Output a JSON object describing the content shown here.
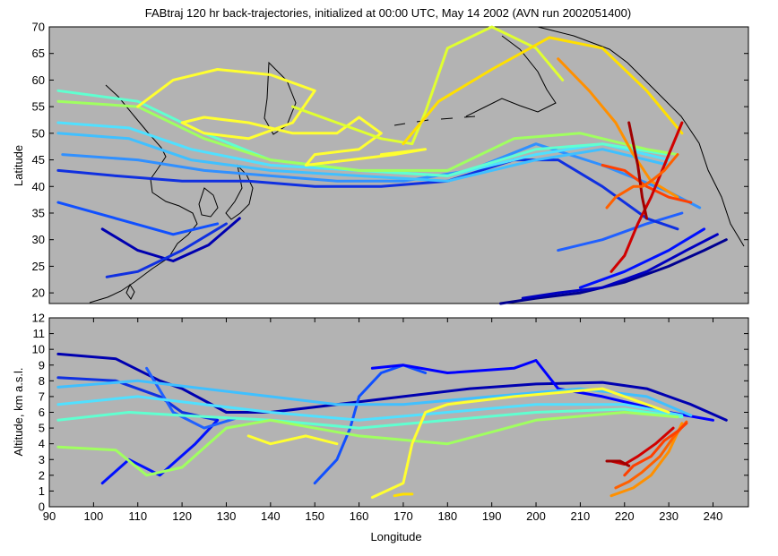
{
  "chart_data": [
    {
      "type": "line",
      "title": "FABtraj 120 hr back-trajectories, initialized at 00:00 UTC, May 14 2002 (AVN run 2002051400)",
      "xlabel": "",
      "ylabel": "Latitude",
      "xlim": [
        90,
        248
      ],
      "ylim": [
        18,
        70
      ],
      "yticks": [
        20,
        25,
        30,
        35,
        40,
        45,
        50,
        55,
        60,
        65,
        70
      ],
      "background": "#b3b3b3",
      "coastlines": true,
      "series": [
        {
          "color": "#000090",
          "x": [
            192,
            200,
            210,
            220,
            230,
            238,
            243
          ],
          "y": [
            18,
            19,
            20,
            22,
            25,
            28,
            30
          ]
        },
        {
          "color": "#0000c0",
          "x": [
            197,
            205,
            215,
            225,
            234,
            241
          ],
          "y": [
            19,
            20,
            21,
            24,
            28,
            31
          ]
        },
        {
          "color": "#0010ff",
          "x": [
            210,
            220,
            230,
            238
          ],
          "y": [
            21,
            24,
            28,
            32
          ]
        },
        {
          "color": "#2060ff",
          "x": [
            205,
            215,
            225,
            233
          ],
          "y": [
            28,
            30,
            33,
            35
          ]
        },
        {
          "color": "#1030e0",
          "x": [
            92,
            105,
            120,
            135,
            150,
            165,
            180,
            195,
            205,
            215,
            225,
            232
          ],
          "y": [
            43,
            42,
            41,
            41,
            40,
            40,
            41,
            45,
            45,
            40,
            34,
            32
          ]
        },
        {
          "color": "#3090ff",
          "x": [
            93,
            110,
            125,
            140,
            155,
            170,
            185,
            200,
            215,
            230,
            237
          ],
          "y": [
            46,
            45,
            43,
            42,
            41,
            41,
            43,
            48,
            44,
            39,
            36
          ]
        },
        {
          "color": "#1050ff",
          "x": [
            92,
            105,
            118,
            128
          ],
          "y": [
            37,
            34,
            31,
            33
          ]
        },
        {
          "color": "#0000b0",
          "x": [
            102,
            110,
            118,
            126,
            133
          ],
          "y": [
            32,
            28,
            26,
            29,
            34
          ]
        },
        {
          "color": "#1030e0",
          "x": [
            103,
            110,
            120,
            130
          ],
          "y": [
            23,
            24,
            28,
            33
          ]
        },
        {
          "color": "#50e0ff",
          "x": [
            92,
            108,
            122,
            140,
            160,
            180,
            200,
            215,
            230
          ],
          "y": [
            52,
            51,
            47,
            44,
            43,
            42,
            46,
            48,
            45
          ]
        },
        {
          "color": "#40c0ff",
          "x": [
            92,
            108,
            122,
            140,
            160,
            180,
            200,
            215,
            230
          ],
          "y": [
            50,
            49,
            45,
            43,
            42,
            41,
            45,
            47,
            44
          ]
        },
        {
          "color": "#60ffd0",
          "x": [
            92,
            110,
            125,
            140,
            160,
            180,
            200,
            215,
            230
          ],
          "y": [
            58,
            56,
            50,
            45,
            43,
            42,
            47,
            48,
            46
          ]
        },
        {
          "color": "#a0ff60",
          "x": [
            92,
            110,
            125,
            140,
            160,
            180,
            195,
            210,
            225,
            232
          ],
          "y": [
            56,
            55,
            49,
            45,
            43,
            43,
            49,
            50,
            47,
            46
          ]
        },
        {
          "color": "#ffff30",
          "x": [
            110,
            118,
            128,
            140,
            150,
            145,
            135,
            125,
            120,
            125,
            135,
            145,
            155,
            160,
            165,
            160,
            150,
            148,
            158,
            168,
            175,
            165
          ],
          "y": [
            55,
            60,
            62,
            61,
            58,
            52,
            49,
            50,
            52,
            53,
            52,
            50,
            50,
            53,
            50,
            47,
            46,
            44,
            45,
            46,
            47,
            46
          ]
        },
        {
          "color": "#e0ff30",
          "x": [
            145,
            155,
            165,
            172,
            175,
            180,
            190,
            200,
            206
          ],
          "y": [
            55,
            52,
            49,
            48,
            54,
            66,
            70,
            66,
            60
          ]
        },
        {
          "color": "#ffe000",
          "x": [
            170,
            178,
            190,
            203,
            215,
            225,
            233
          ],
          "y": [
            48,
            56,
            62,
            68,
            66,
            58,
            50
          ]
        },
        {
          "color": "#ff9000",
          "x": [
            205,
            212,
            218,
            222,
            226,
            232
          ],
          "y": [
            64,
            58,
            52,
            46,
            41,
            38
          ]
        },
        {
          "color": "#ff4000",
          "x": [
            215,
            220,
            225,
            230,
            235
          ],
          "y": [
            44,
            43,
            40,
            38,
            37
          ]
        },
        {
          "color": "#d00000",
          "x": [
            217,
            220,
            223,
            226,
            229,
            233
          ],
          "y": [
            24,
            27,
            33,
            38,
            44,
            52
          ]
        },
        {
          "color": "#a00000",
          "x": [
            221,
            222,
            223,
            224,
            225
          ],
          "y": [
            52,
            48,
            44,
            38,
            34
          ]
        },
        {
          "color": "#ff6000",
          "x": [
            216,
            218,
            222,
            224,
            226,
            229,
            232
          ],
          "y": [
            36,
            38,
            40,
            40,
            41,
            43,
            46
          ]
        }
      ]
    },
    {
      "type": "line",
      "title": "",
      "xlabel": "Longitude",
      "ylabel": "Altitude, km a.s.l.",
      "xlim": [
        90,
        248
      ],
      "ylim": [
        0,
        12
      ],
      "xticks": [
        90,
        100,
        110,
        120,
        130,
        140,
        150,
        160,
        170,
        180,
        190,
        200,
        210,
        220,
        230,
        240
      ],
      "yticks": [
        0,
        1,
        2,
        3,
        4,
        5,
        6,
        7,
        8,
        9,
        10,
        11,
        12
      ],
      "background": "#b3b3b3",
      "series": [
        {
          "color": "#0000b0",
          "x": [
            92,
            105,
            115,
            120,
            130,
            140,
            155,
            170,
            185,
            200,
            215,
            225,
            235,
            243
          ],
          "y": [
            9.7,
            9.4,
            8.0,
            7.5,
            6.0,
            6.0,
            6.5,
            7.0,
            7.5,
            7.8,
            7.9,
            7.5,
            6.5,
            5.5
          ]
        },
        {
          "color": "#1030e0",
          "x": [
            92,
            105,
            115,
            120,
            128
          ],
          "y": [
            8.2,
            8.0,
            7.0,
            6.0,
            5.5
          ]
        },
        {
          "color": "#0010ff",
          "x": [
            102,
            108,
            115,
            123,
            128
          ],
          "y": [
            1.5,
            3.0,
            2.0,
            4.0,
            5.5
          ]
        },
        {
          "color": "#2060ff",
          "x": [
            112,
            118,
            125,
            132
          ],
          "y": [
            8.8,
            6.0,
            5.0,
            5.6
          ]
        },
        {
          "color": "#1050ff",
          "x": [
            150,
            155,
            158,
            160,
            165,
            170,
            175
          ],
          "y": [
            1.5,
            3.0,
            5.0,
            7.0,
            8.5,
            9.0,
            8.5
          ]
        },
        {
          "color": "#0000ff",
          "x": [
            163,
            170,
            180,
            195,
            200,
            205,
            215,
            230,
            240
          ],
          "y": [
            8.8,
            9.0,
            8.5,
            8.8,
            9.3,
            7.5,
            7.0,
            6.0,
            5.5
          ]
        },
        {
          "color": "#40c0ff",
          "x": [
            92,
            110,
            125,
            140,
            155,
            170,
            190,
            210,
            225,
            235
          ],
          "y": [
            7.6,
            8.0,
            7.5,
            7.0,
            6.5,
            6.5,
            7.0,
            7.5,
            7.0,
            5.8
          ]
        },
        {
          "color": "#50e0ff",
          "x": [
            92,
            110,
            125,
            140,
            160,
            180,
            200,
            220,
            233
          ],
          "y": [
            6.5,
            7.0,
            6.5,
            6.0,
            5.5,
            6.0,
            6.5,
            6.5,
            5.8
          ]
        },
        {
          "color": "#60ffd0",
          "x": [
            92,
            108,
            120,
            140,
            160,
            180,
            200,
            220,
            233
          ],
          "y": [
            5.5,
            6.0,
            5.8,
            5.5,
            5.0,
            5.5,
            6.0,
            6.2,
            5.7
          ]
        },
        {
          "color": "#a0ff60",
          "x": [
            92,
            105,
            112,
            120,
            130,
            140,
            160,
            180,
            200,
            220,
            232
          ],
          "y": [
            3.8,
            3.6,
            2.0,
            2.5,
            5.0,
            5.5,
            4.5,
            4.0,
            5.5,
            6.0,
            5.7
          ]
        },
        {
          "color": "#ffff30",
          "x": [
            135,
            140,
            148,
            155
          ],
          "y": [
            4.5,
            4.0,
            4.5,
            4.0
          ]
        },
        {
          "color": "#ffff30",
          "x": [
            163,
            170,
            172,
            175,
            180,
            195,
            215,
            230
          ],
          "y": [
            0.6,
            1.5,
            4.0,
            6.0,
            6.5,
            7.0,
            7.5,
            6.0
          ]
        },
        {
          "color": "#ffe000",
          "x": [
            168,
            170,
            172
          ],
          "y": [
            0.7,
            0.8,
            0.8
          ]
        },
        {
          "color": "#ff9000",
          "x": [
            217,
            222,
            226,
            230,
            233
          ],
          "y": [
            0.7,
            1.2,
            2.0,
            3.5,
            5.3
          ]
        },
        {
          "color": "#ff6000",
          "x": [
            218,
            221,
            224,
            228,
            231,
            234
          ],
          "y": [
            1.2,
            1.6,
            2.2,
            3.2,
            4.4,
            5.4
          ]
        },
        {
          "color": "#ff4000",
          "x": [
            220,
            222,
            226,
            229,
            232,
            234
          ],
          "y": [
            2.0,
            2.6,
            3.2,
            4.2,
            4.8,
            5.3
          ]
        },
        {
          "color": "#d00000",
          "x": [
            217,
            220,
            223,
            227,
            231
          ],
          "y": [
            2.9,
            2.7,
            3.2,
            4.0,
            5.0
          ]
        },
        {
          "color": "#a00000",
          "x": [
            216,
            219,
            221
          ],
          "y": [
            2.9,
            2.9,
            2.6
          ]
        }
      ]
    }
  ]
}
